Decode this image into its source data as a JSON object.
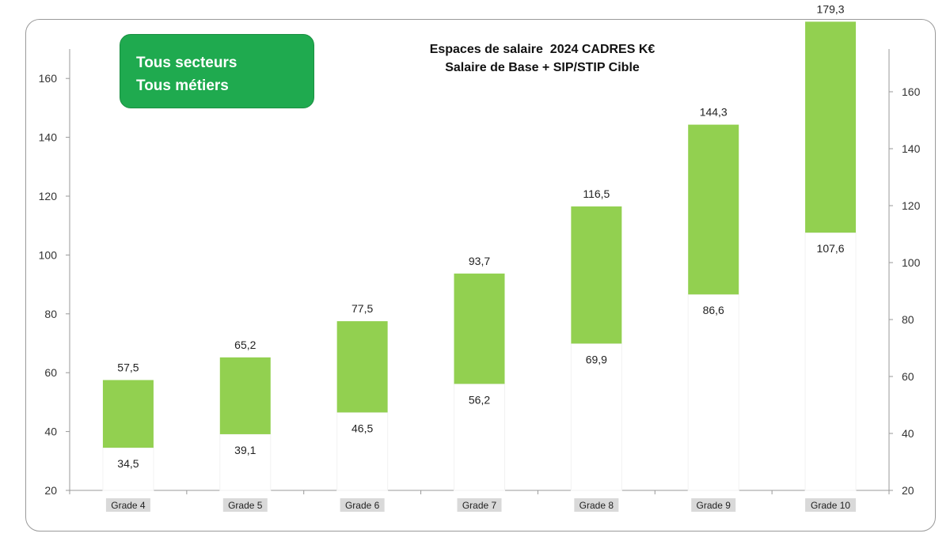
{
  "badge": {
    "line1": "Tous secteurs",
    "line2": "Tous métiers"
  },
  "chart_data": {
    "type": "bar",
    "subtype": "floating-range",
    "title": "Espaces de salaire  2024 CADRES K€",
    "subtitle": "Salaire de Base + SIP/STIP Cible",
    "categories": [
      "Grade 4",
      "Grade 5",
      "Grade 6",
      "Grade 7",
      "Grade 8",
      "Grade 9",
      "Grade 10"
    ],
    "low": [
      34.5,
      39.1,
      46.5,
      56.2,
      69.9,
      86.6,
      107.6
    ],
    "high": [
      57.5,
      65.2,
      77.5,
      93.7,
      116.5,
      144.3,
      179.3
    ],
    "low_labels": [
      "34,5",
      "39,1",
      "46,5",
      "56,2",
      "69,9",
      "86,6",
      "107,6"
    ],
    "high_labels": [
      "57,5",
      "65,2",
      "77,5",
      "93,7",
      "116,5",
      "144,3",
      "179,3"
    ],
    "y_left": {
      "min": 20,
      "max": 170,
      "ticks": [
        20,
        40,
        60,
        80,
        100,
        120,
        140,
        160
      ]
    },
    "y_right": {
      "min": 20,
      "max": 175,
      "ticks": [
        20,
        40,
        60,
        80,
        100,
        120,
        140,
        160
      ]
    },
    "grid": false,
    "colors": {
      "bar": "#92d050",
      "badge": "#1faa4f",
      "axis": "#999999",
      "category_bg": "#d9d9d9"
    }
  }
}
